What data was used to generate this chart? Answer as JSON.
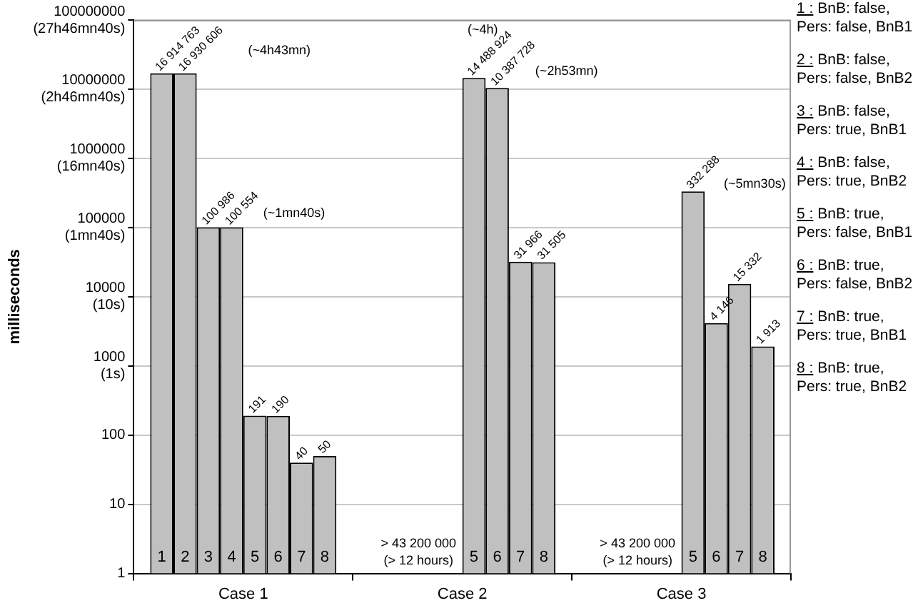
{
  "chart_data": {
    "type": "bar",
    "ylabel": "milliseconds",
    "categories": [
      "Case 1",
      "Case 2",
      "Case 3"
    ],
    "log": true,
    "ylim": [
      1,
      100000000
    ],
    "yticks": [
      1,
      10,
      100,
      {
        "value": 1000,
        "label": "1000\n(1s)"
      },
      {
        "value": 10000,
        "label": "10000\n(10s)"
      },
      {
        "value": 100000,
        "label": "100000\n(1mn40s)"
      },
      {
        "value": 1000000,
        "label": "1000000\n(16mn40s)"
      },
      {
        "value": 10000000,
        "label": "10000000\n(2h46mn40s)"
      },
      {
        "value": 100000000,
        "label": "100000000\n(27h46mn40s)"
      }
    ],
    "grid": "y",
    "series": [
      {
        "name": "1",
        "color": "#c0c0c0",
        "values": [
          16914763,
          null,
          null
        ],
        "value_labels": [
          "16 914 763",
          null,
          null
        ]
      },
      {
        "name": "2",
        "color": "#c0c0c0",
        "values": [
          16930606,
          null,
          null
        ],
        "value_labels": [
          "16 930 606",
          null,
          null
        ]
      },
      {
        "name": "3",
        "color": "#c0c0c0",
        "values": [
          100986,
          null,
          null
        ],
        "value_labels": [
          "100 986",
          null,
          null
        ]
      },
      {
        "name": "4",
        "color": "#c0c0c0",
        "values": [
          100554,
          null,
          null
        ],
        "value_labels": [
          "100 554",
          null,
          null
        ]
      },
      {
        "name": "5",
        "color": "#c0c0c0",
        "values": [
          191,
          14488924,
          332288
        ],
        "value_labels": [
          "191",
          "14 488 924",
          "332 288"
        ]
      },
      {
        "name": "6",
        "color": "#c0c0c0",
        "values": [
          190,
          10387728,
          4146
        ],
        "value_labels": [
          "190",
          "10 387 728",
          "4 146"
        ]
      },
      {
        "name": "7",
        "color": "#c0c0c0",
        "values": [
          40,
          31966,
          15332
        ],
        "value_labels": [
          "40",
          "31 966",
          "15 332"
        ]
      },
      {
        "name": "8",
        "color": "#c0c0c0",
        "values": [
          50,
          31505,
          1913
        ],
        "value_labels": [
          "50",
          "31 505",
          "1 913"
        ]
      }
    ],
    "annotations": [
      "(~4h43mn)",
      "(~1mn40s)",
      "(~4h)",
      "(~2h53mn)",
      "(~5mn30s)",
      {
        "text": "> 43 200 000\n(> 12 hours)",
        "x": "Case 2",
        "y": 2
      },
      {
        "text": "> 43 200 000\n(> 12 hours)",
        "x": "Case 3",
        "y": 2
      },
      "1 : BnB: false, Pers: false, BnB1",
      "2 : BnB: false, Pers: false, BnB2",
      "3 : BnB: false, Pers: true, BnB1",
      "4 : BnB: false, Pers: true, BnB2",
      "5 : BnB: true, Pers: false, BnB1",
      "6 : BnB: true, Pers: false, BnB2",
      "7 : BnB: true, Pers: true, BnB1",
      "8 : BnB: true, Pers: true, BnB2"
    ]
  }
}
